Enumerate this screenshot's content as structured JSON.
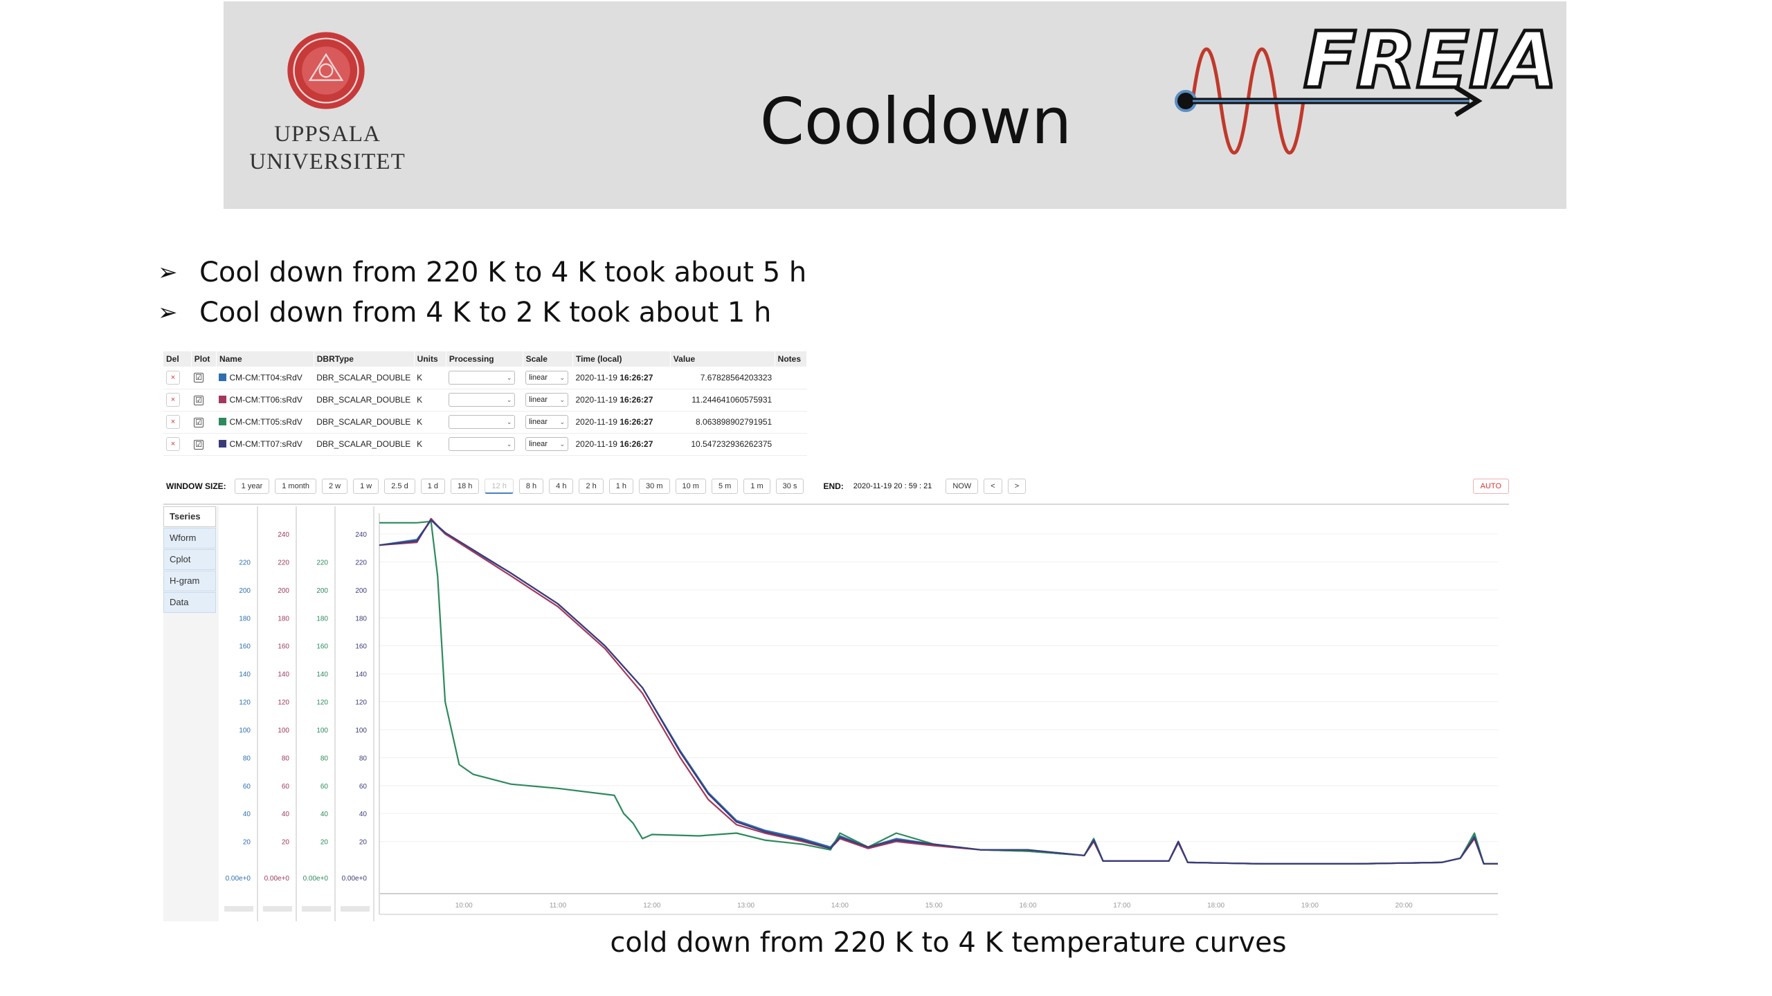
{
  "header": {
    "title": "Cooldown",
    "university_line1": "UPPSALA",
    "university_line2": "UNIVERSITET",
    "logo_text": "FREIA"
  },
  "bullets": [
    "Cool down from 220 K to 4 K took about 5 h",
    "Cool down from 4 K to 2 K took about 1 h"
  ],
  "pv_table": {
    "headers": [
      "Del",
      "Plot",
      "Name",
      "DBRType",
      "Units",
      "Processing",
      "Scale",
      "Time (local)",
      "Value",
      "Notes"
    ],
    "rows": [
      {
        "del": "×",
        "plot": "☑",
        "name": "CM-CM:TT04:sRdV",
        "color": "#2f6fb0",
        "dbr": "DBR_SCALAR_DOUBLE",
        "units": "K",
        "scale": "linear",
        "date": "2020-11-19",
        "time": "16:26:27",
        "value": "7.67828564203323"
      },
      {
        "del": "×",
        "plot": "☑",
        "name": "CM-CM:TT06:sRdV",
        "color": "#a3385c",
        "dbr": "DBR_SCALAR_DOUBLE",
        "units": "K",
        "scale": "linear",
        "date": "2020-11-19",
        "time": "16:26:27",
        "value": "11.244641060575931"
      },
      {
        "del": "×",
        "plot": "☑",
        "name": "CM-CM:TT05:sRdV",
        "color": "#2d8a5c",
        "dbr": "DBR_SCALAR_DOUBLE",
        "units": "K",
        "scale": "linear",
        "date": "2020-11-19",
        "time": "16:26:27",
        "value": "8.063898902791951"
      },
      {
        "del": "×",
        "plot": "☑",
        "name": "CM-CM:TT07:sRdV",
        "color": "#3b3b7a",
        "dbr": "DBR_SCALAR_DOUBLE",
        "units": "K",
        "scale": "linear",
        "date": "2020-11-19",
        "time": "16:26:27",
        "value": "10.547232936262375"
      }
    ]
  },
  "window_size": {
    "label": "WINDOW SIZE:",
    "buttons": [
      "1 year",
      "1 month",
      "2 w",
      "1 w",
      "2.5 d",
      "1 d",
      "18 h",
      "12 h",
      "8 h",
      "4 h",
      "2 h",
      "1 h",
      "30 m",
      "10 m",
      "5 m",
      "1 m",
      "30 s"
    ],
    "active_index": 7,
    "end_label": "END:",
    "end_value": "2020-11-19  20 : 59 : 21",
    "now_label": "NOW",
    "prev_label": "<",
    "next_label": ">",
    "auto_label": "AUTO"
  },
  "plot_tabs": [
    "Tseries",
    "Wform",
    "Cplot",
    "H-gram",
    "Data"
  ],
  "chart_data": {
    "type": "line",
    "xlabel": "",
    "x_unit": "hour of day",
    "xlim": [
      9.1,
      21.0
    ],
    "x_ticks": [
      "10:00",
      "11:00",
      "12:00",
      "13:00",
      "14:00",
      "15:00",
      "16:00",
      "17:00",
      "18:00",
      "19:00",
      "20:00"
    ],
    "y_axes": [
      {
        "color": "#2f6fb0",
        "ticks": [
          "220",
          "200",
          "180",
          "160",
          "140",
          "120",
          "100",
          "80",
          "60",
          "40",
          "20",
          "0.00e+0"
        ],
        "ylim": [
          0,
          220
        ]
      },
      {
        "color": "#a3385c",
        "ticks": [
          "240",
          "220",
          "200",
          "180",
          "160",
          "140",
          "120",
          "100",
          "80",
          "60",
          "40",
          "20",
          "0.00e+0"
        ],
        "ylim": [
          0,
          240
        ]
      },
      {
        "color": "#2d8a5c",
        "ticks": [
          "220",
          "200",
          "180",
          "160",
          "140",
          "120",
          "100",
          "80",
          "60",
          "40",
          "20",
          "0.00e+0"
        ],
        "ylim": [
          0,
          220
        ]
      },
      {
        "color": "#3b3b7a",
        "ticks": [
          "240",
          "220",
          "200",
          "180",
          "160",
          "140",
          "120",
          "100",
          "80",
          "60",
          "40",
          "20",
          "0.00e+0"
        ],
        "ylim": [
          0,
          240
        ]
      }
    ],
    "series": [
      {
        "name": "CM-CM:TT04:sRdV",
        "color": "#2f6fb0",
        "points": [
          [
            9.1,
            232
          ],
          [
            9.5,
            236
          ],
          [
            9.65,
            250
          ],
          [
            9.8,
            240
          ],
          [
            10.5,
            212
          ],
          [
            11.0,
            190
          ],
          [
            11.5,
            160
          ],
          [
            11.9,
            130
          ],
          [
            12.3,
            85
          ],
          [
            12.6,
            55
          ],
          [
            12.9,
            35
          ],
          [
            13.2,
            28
          ],
          [
            13.6,
            22
          ],
          [
            13.9,
            16
          ],
          [
            14.0,
            24
          ],
          [
            14.3,
            16
          ],
          [
            14.6,
            22
          ],
          [
            15.0,
            18
          ],
          [
            15.5,
            14
          ],
          [
            16.0,
            14
          ],
          [
            16.6,
            10
          ],
          [
            16.7,
            22
          ],
          [
            16.8,
            6
          ],
          [
            17.5,
            6
          ],
          [
            17.6,
            20
          ],
          [
            17.7,
            5
          ],
          [
            18.5,
            4
          ],
          [
            19.5,
            4
          ],
          [
            20.4,
            5
          ],
          [
            20.6,
            8
          ],
          [
            20.75,
            24
          ],
          [
            20.85,
            4
          ],
          [
            21.0,
            4
          ]
        ]
      },
      {
        "name": "CM-CM:TT06:sRdV",
        "color": "#a3385c",
        "points": [
          [
            9.1,
            232
          ],
          [
            9.5,
            234
          ],
          [
            9.65,
            251
          ],
          [
            9.8,
            240
          ],
          [
            10.5,
            210
          ],
          [
            11.0,
            188
          ],
          [
            11.5,
            158
          ],
          [
            11.9,
            126
          ],
          [
            12.3,
            80
          ],
          [
            12.6,
            50
          ],
          [
            12.9,
            32
          ],
          [
            13.2,
            26
          ],
          [
            13.6,
            20
          ],
          [
            13.9,
            15
          ],
          [
            14.0,
            22
          ],
          [
            14.3,
            15
          ],
          [
            14.6,
            20
          ],
          [
            15.0,
            17
          ],
          [
            15.5,
            14
          ],
          [
            16.0,
            13
          ],
          [
            16.6,
            10
          ],
          [
            16.7,
            20
          ],
          [
            16.8,
            6
          ],
          [
            17.5,
            6
          ],
          [
            17.6,
            19
          ],
          [
            17.7,
            5
          ],
          [
            18.5,
            4
          ],
          [
            19.5,
            4
          ],
          [
            20.4,
            5
          ],
          [
            20.6,
            8
          ],
          [
            20.75,
            22
          ],
          [
            20.85,
            4
          ],
          [
            21.0,
            4
          ]
        ]
      },
      {
        "name": "CM-CM:TT05:sRdV",
        "color": "#2d8a5c",
        "points": [
          [
            9.1,
            248
          ],
          [
            9.5,
            248
          ],
          [
            9.65,
            249
          ],
          [
            9.72,
            210
          ],
          [
            9.8,
            120
          ],
          [
            9.95,
            75
          ],
          [
            10.1,
            68
          ],
          [
            10.5,
            61
          ],
          [
            11.0,
            58
          ],
          [
            11.6,
            53
          ],
          [
            11.7,
            40
          ],
          [
            11.8,
            33
          ],
          [
            11.9,
            22
          ],
          [
            12.0,
            25
          ],
          [
            12.5,
            24
          ],
          [
            12.9,
            26
          ],
          [
            13.2,
            21
          ],
          [
            13.6,
            18
          ],
          [
            13.9,
            14
          ],
          [
            14.0,
            26
          ],
          [
            14.3,
            16
          ],
          [
            14.6,
            26
          ],
          [
            15.0,
            18
          ],
          [
            15.5,
            14
          ],
          [
            16.0,
            13
          ],
          [
            16.6,
            10
          ],
          [
            16.7,
            22
          ],
          [
            16.8,
            6
          ],
          [
            17.5,
            6
          ],
          [
            17.6,
            20
          ],
          [
            17.7,
            5
          ],
          [
            18.5,
            4
          ],
          [
            19.5,
            4
          ],
          [
            20.4,
            5
          ],
          [
            20.6,
            8
          ],
          [
            20.75,
            26
          ],
          [
            20.85,
            4
          ],
          [
            21.0,
            4
          ]
        ]
      },
      {
        "name": "CM-CM:TT07:sRdV",
        "color": "#3b3b7a",
        "points": [
          [
            9.1,
            232
          ],
          [
            9.5,
            235
          ],
          [
            9.65,
            250
          ],
          [
            9.8,
            241
          ],
          [
            10.5,
            212
          ],
          [
            11.0,
            190
          ],
          [
            11.5,
            160
          ],
          [
            11.9,
            130
          ],
          [
            12.3,
            84
          ],
          [
            12.6,
            54
          ],
          [
            12.9,
            34
          ],
          [
            13.2,
            27
          ],
          [
            13.6,
            21
          ],
          [
            13.9,
            15
          ],
          [
            14.0,
            23
          ],
          [
            14.3,
            16
          ],
          [
            14.6,
            21
          ],
          [
            15.0,
            18
          ],
          [
            15.5,
            14
          ],
          [
            16.0,
            14
          ],
          [
            16.6,
            10
          ],
          [
            16.7,
            21
          ],
          [
            16.8,
            6
          ],
          [
            17.5,
            6
          ],
          [
            17.6,
            20
          ],
          [
            17.7,
            5
          ],
          [
            18.5,
            4
          ],
          [
            19.5,
            4
          ],
          [
            20.4,
            5
          ],
          [
            20.6,
            8
          ],
          [
            20.75,
            23
          ],
          [
            20.85,
            4
          ],
          [
            21.0,
            4
          ]
        ]
      }
    ]
  },
  "caption": "cold down from 220 K to 4 K temperature curves"
}
